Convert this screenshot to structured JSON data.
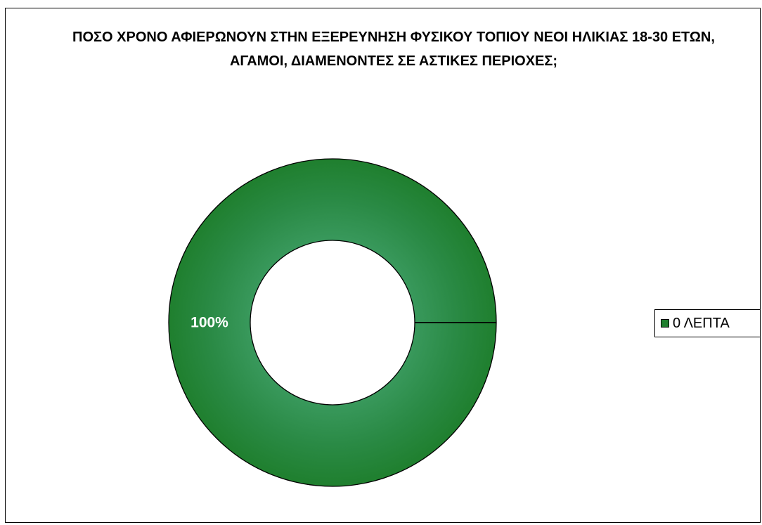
{
  "chart_data": {
    "type": "pie",
    "variant": "doughnut",
    "title": "ΠΟΣΟ ΧΡΟΝΟ ΑΦΙΕΡΩΝΟΥΝ ΣΤΗΝ ΕΞΕΡΕΥΝΗΣΗ ΦΥΣΙΚΟΥ ΤΟΠΙΟΥ ΝΕΟΙ ΗΛΙΚΙΑΣ 18-30 ΕΤΩΝ, ΑΓΑΜΟΙ, ΔΙΑΜΕΝΟΝΤΕΣ ΣΕ ΑΣΤΙΚΕΣ ΠΕΡΙΟΧΕΣ;",
    "categories": [
      "0 ΛΕΠΤΑ"
    ],
    "values": [
      100
    ],
    "data_labels": [
      "100%"
    ],
    "colors": [
      "#1f7f2e"
    ],
    "legend_position": "right"
  }
}
